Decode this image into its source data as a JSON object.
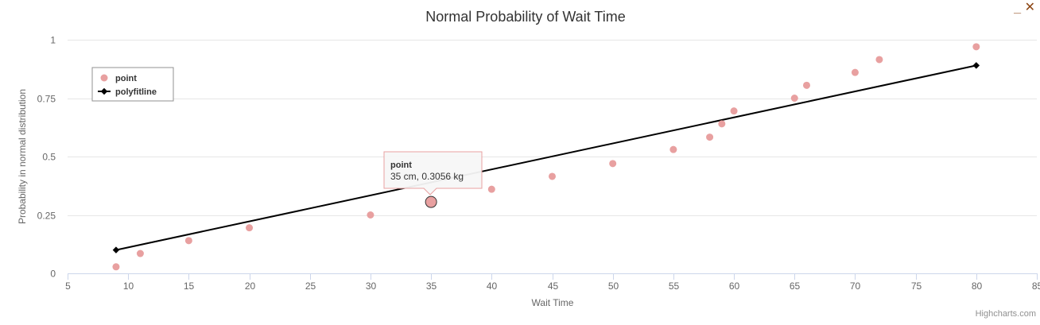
{
  "window": {
    "minimize_label": "_",
    "close_label": "✕"
  },
  "chart_data": {
    "type": "scatter",
    "title": "Normal Probability of Wait Time",
    "xlabel": "Wait Time",
    "ylabel": "Probability in normal distribution",
    "xlim": [
      5,
      85
    ],
    "ylim": [
      0,
      1
    ],
    "xticks": [
      5,
      10,
      15,
      20,
      25,
      30,
      35,
      40,
      45,
      50,
      55,
      60,
      65,
      70,
      75,
      80,
      85
    ],
    "yticks": [
      0,
      0.25,
      0.5,
      0.75,
      1
    ],
    "ytick_labels": [
      "0",
      "0.25",
      "0.5",
      "0.75",
      "1"
    ],
    "grid": true,
    "legend_position": "top-left",
    "series": [
      {
        "name": "point",
        "type": "scatter",
        "color": "#E8A0A0",
        "x": [
          9,
          11,
          15,
          20,
          30,
          35,
          40,
          45,
          50,
          55,
          58,
          59,
          60,
          65,
          66,
          70,
          72,
          80
        ],
        "y": [
          0.028,
          0.085,
          0.14,
          0.195,
          0.25,
          0.3056,
          0.36,
          0.415,
          0.47,
          0.53,
          0.583,
          0.64,
          0.695,
          0.75,
          0.805,
          0.86,
          0.915,
          0.97
        ]
      },
      {
        "name": "polyfitline",
        "type": "line",
        "color": "#000000",
        "x": [
          9,
          80
        ],
        "y": [
          0.1,
          0.89
        ]
      }
    ],
    "tooltip": {
      "title": "point",
      "text": "35 cm, 0.3056 kg",
      "x": 35,
      "y": 0.3056
    },
    "credits": "Highcharts.com"
  }
}
